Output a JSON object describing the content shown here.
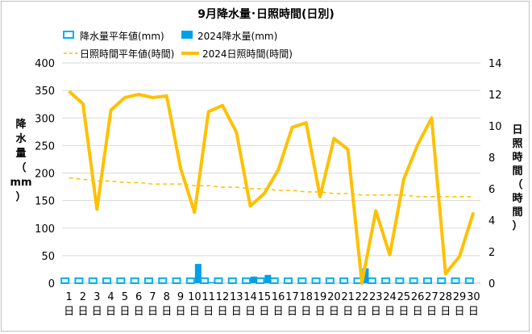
{
  "chart_data": {
    "type": "bar",
    "title": "9月降水量･日照時間(日別)",
    "ylabel_left_chars": [
      "降",
      "水",
      "量",
      "（",
      "mm",
      "）"
    ],
    "ylabel_right_chars": [
      "日",
      "照",
      "時",
      "間",
      "（",
      "時",
      "間",
      "）"
    ],
    "y_left": {
      "min": 0,
      "max": 400,
      "ticks": [
        0,
        50,
        100,
        150,
        200,
        250,
        300,
        350,
        400
      ]
    },
    "y_right": {
      "min": 0,
      "max": 14,
      "ticks": [
        0,
        2,
        4,
        6,
        8,
        10,
        12,
        14
      ]
    },
    "categories": [
      "1",
      "2",
      "3",
      "4",
      "5",
      "6",
      "7",
      "8",
      "9",
      "10",
      "11",
      "12",
      "13",
      "14",
      "15",
      "16",
      "17",
      "18",
      "19",
      "20",
      "21",
      "22",
      "23",
      "24",
      "25",
      "26",
      "27",
      "28",
      "29",
      "30"
    ],
    "category_suffix": "日",
    "series": [
      {
        "name": "降水量平年値(mm)",
        "kind": "bar-outline",
        "axis": "left",
        "color": "#00b0f0",
        "values": [
          9,
          9,
          9,
          9,
          9,
          9,
          9,
          9,
          9,
          9,
          9,
          9,
          9,
          9,
          9,
          9,
          9,
          9,
          9,
          9,
          9,
          9,
          9,
          9,
          9,
          9,
          9,
          9,
          9,
          9
        ]
      },
      {
        "name": "2024降水量(mm)",
        "kind": "bar",
        "axis": "left",
        "color": "#00a0e9",
        "values": [
          0,
          0,
          0,
          0,
          0,
          0,
          0,
          0,
          0,
          35,
          2,
          0,
          0,
          12,
          15,
          0,
          0,
          0,
          0,
          0,
          0,
          27,
          0,
          0,
          0,
          0,
          0,
          0,
          0,
          0
        ]
      },
      {
        "name": "日照時間平年値(時間)",
        "kind": "line-dashed",
        "axis": "right",
        "color": "#ffc000",
        "values": [
          6.7,
          6.6,
          6.5,
          6.5,
          6.4,
          6.4,
          6.3,
          6.3,
          6.3,
          6.2,
          6.2,
          6.1,
          6.1,
          6.0,
          6.0,
          5.9,
          5.9,
          5.8,
          5.8,
          5.7,
          5.7,
          5.6,
          5.6,
          5.6,
          5.6,
          5.5,
          5.5,
          5.5,
          5.5,
          5.5
        ]
      },
      {
        "name": "2024日照時間(時間)",
        "kind": "line",
        "axis": "right",
        "color": "#ffc000",
        "values": [
          12.2,
          11.4,
          4.7,
          11.0,
          11.8,
          12.0,
          11.8,
          11.9,
          7.3,
          4.5,
          10.9,
          11.3,
          9.6,
          4.9,
          5.7,
          7.2,
          9.9,
          10.2,
          5.5,
          9.2,
          8.5,
          0.0,
          4.6,
          1.8,
          6.6,
          8.8,
          10.5,
          0.6,
          1.7,
          4.5
        ]
      }
    ],
    "legend": [
      {
        "label": "降水量平年値(mm)",
        "series": 0
      },
      {
        "label": "2024降水量(mm)",
        "series": 1
      },
      {
        "label": "日照時間平年値(時間)",
        "series": 2
      },
      {
        "label": "2024日照時間(時間)",
        "series": 3
      }
    ],
    "legend_placement": "top"
  }
}
